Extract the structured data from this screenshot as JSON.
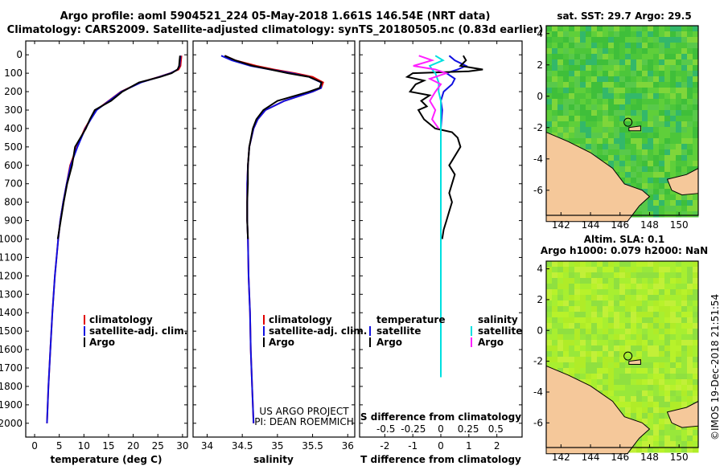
{
  "header": {
    "title1": "Argo profile: aoml 5904521_224 05-May-2018 1.661S 146.54E (NRT data)",
    "title2": "Climatology: CARS2009. Satellite-adjusted climatology: synTS_20180505.nc (0.83d earlier)"
  },
  "map_top": {
    "title": "sat. SST: 29.7 Argo: 29.5",
    "x_ticks": [
      "142",
      "144",
      "146",
      "148",
      "150"
    ],
    "y_ticks": [
      "4",
      "2",
      "0",
      "-2",
      "-4",
      "-6"
    ]
  },
  "map_bottom": {
    "title1": "Altim. SLA: 0.1",
    "title2": "Argo h1000: 0.079 h2000: NaN",
    "x_ticks": [
      "142",
      "144",
      "146",
      "148",
      "150"
    ],
    "y_ticks": [
      "4",
      "2",
      "0",
      "-2",
      "-4",
      "-6"
    ]
  },
  "credit": {
    "line1": "US ARGO PROJECT",
    "line2": "PI: DEAN ROEMMICH"
  },
  "watermark": "©IMOS 19-Dec-2018 21:51:54",
  "colors": {
    "climatology": "#e00000",
    "satellite": "#1010e0",
    "argo": "#000000",
    "sat_salinity": "#00e0e0",
    "argo_salinity": "#ff20ff",
    "land": "#f5c89a",
    "ocean_a": "#5fcf3a",
    "ocean_b": "#a8ef30"
  },
  "chart_data": [
    {
      "type": "line",
      "title": "",
      "xlabel": "temperature (deg C)",
      "ylabel": "",
      "xlim": [
        -1,
        31
      ],
      "ylim": [
        2050,
        0
      ],
      "x_ticks": [
        "0",
        "5",
        "10",
        "15",
        "20",
        "25",
        "30"
      ],
      "y_ticks": [
        "0",
        "100",
        "200",
        "300",
        "400",
        "500",
        "600",
        "700",
        "800",
        "900",
        "1000",
        "1100",
        "1200",
        "1300",
        "1400",
        "1500",
        "1600",
        "1700",
        "1800",
        "1900",
        "2000"
      ],
      "legend": [
        "climatology",
        "satellite-adj. clim.",
        "Argo"
      ],
      "legend_position": "lower-middle",
      "series": [
        {
          "name": "climatology",
          "depth": [
            5,
            30,
            60,
            80,
            100,
            120,
            150,
            200,
            250,
            300,
            350,
            400,
            500,
            600,
            700,
            800,
            900,
            1000,
            1200,
            1400,
            1600,
            1800,
            2000
          ],
          "values": [
            29.8,
            29.7,
            29.6,
            29.2,
            27.5,
            25.2,
            21.5,
            17.5,
            15,
            12.5,
            11.3,
            10.2,
            8.6,
            7.2,
            6.5,
            5.8,
            5.2,
            4.8,
            4.1,
            3.6,
            3.2,
            2.8,
            2.5
          ]
        },
        {
          "name": "satellite-adj. clim.",
          "depth": [
            5,
            30,
            60,
            80,
            100,
            120,
            150,
            200,
            250,
            300,
            350,
            400,
            500,
            600,
            700,
            800,
            900,
            1000,
            1200,
            1400,
            1600,
            1800,
            2000
          ],
          "values": [
            29.6,
            29.5,
            29.4,
            29.0,
            27.6,
            25.3,
            21.6,
            17.6,
            15.1,
            12.6,
            11.4,
            10.3,
            8.7,
            7.3,
            6.5,
            5.8,
            5.2,
            4.8,
            4.1,
            3.6,
            3.2,
            2.8,
            2.5
          ]
        },
        {
          "name": "Argo",
          "depth": [
            5,
            30,
            60,
            80,
            100,
            120,
            150,
            200,
            250,
            300,
            350,
            400,
            500,
            600,
            700,
            800,
            900,
            1000
          ],
          "values": [
            29.5,
            29.4,
            29.3,
            29.0,
            27.8,
            25.5,
            21.2,
            17.8,
            15.5,
            12.2,
            11.2,
            10.4,
            8.2,
            7.6,
            6.6,
            5.9,
            5.3,
            4.7
          ]
        }
      ]
    },
    {
      "type": "line",
      "title": "",
      "xlabel": "salinity",
      "ylabel": "",
      "xlim": [
        33.8,
        36.1
      ],
      "ylim": [
        2050,
        0
      ],
      "x_ticks": [
        "34",
        "34.5",
        "35",
        "35.5",
        "36"
      ],
      "y_ticks": [],
      "legend": [
        "climatology",
        "satellite-adj. clim.",
        "Argo"
      ],
      "legend_position": "lower-middle",
      "series": [
        {
          "name": "climatology",
          "depth": [
            5,
            30,
            60,
            80,
            100,
            120,
            150,
            180,
            200,
            250,
            300,
            350,
            400,
            500,
            600,
            700,
            800,
            900,
            1000,
            1200,
            1400,
            1600,
            1800,
            2000
          ],
          "values": [
            34.25,
            34.4,
            34.7,
            34.95,
            35.25,
            35.5,
            35.65,
            35.62,
            35.5,
            35.1,
            34.83,
            34.72,
            34.66,
            34.6,
            34.58,
            34.57,
            34.57,
            34.57,
            34.58,
            34.59,
            34.61,
            34.62,
            34.64,
            34.66
          ]
        },
        {
          "name": "satellite-adj. clim.",
          "depth": [
            5,
            30,
            60,
            80,
            100,
            120,
            150,
            180,
            200,
            250,
            300,
            350,
            400,
            500,
            600,
            700,
            800,
            900,
            1000,
            1200,
            1400,
            1600,
            1800,
            2000
          ],
          "values": [
            34.2,
            34.35,
            34.62,
            34.9,
            35.2,
            35.45,
            35.62,
            35.62,
            35.5,
            35.1,
            34.83,
            34.72,
            34.66,
            34.6,
            34.58,
            34.57,
            34.57,
            34.57,
            34.58,
            34.59,
            34.61,
            34.62,
            34.64,
            34.66
          ]
        },
        {
          "name": "Argo",
          "depth": [
            5,
            30,
            60,
            80,
            100,
            120,
            150,
            180,
            200,
            250,
            300,
            350,
            400,
            500,
            600,
            700,
            800,
            900,
            1000
          ],
          "values": [
            34.25,
            34.4,
            34.65,
            34.9,
            35.15,
            35.45,
            35.63,
            35.6,
            35.45,
            35.0,
            34.8,
            34.7,
            34.65,
            34.6,
            34.58,
            34.58,
            34.57,
            34.57,
            34.58
          ]
        }
      ]
    },
    {
      "type": "line",
      "title": "",
      "xlabel": "T difference from climatology",
      "ylabel": "",
      "xlim": [
        -2.9,
        2.9
      ],
      "ylim": [
        2050,
        0
      ],
      "x_ticks": [
        "-2",
        "-1",
        "0",
        "1",
        "2"
      ],
      "s_axis_label": "S difference from climatology",
      "s_ticks": [
        "-0.5",
        "-0.25",
        "0",
        "0.25",
        "0.5"
      ],
      "legend": [
        "temperature",
        "satellite",
        "Argo",
        "salinity",
        "satellite",
        "Argo"
      ],
      "legend_position": "lower",
      "series": [
        {
          "name": "T satellite",
          "depth": [
            5,
            30,
            60,
            80,
            100,
            130,
            160,
            200,
            250,
            300,
            400,
            500,
            600,
            800,
            1000,
            1200,
            1400,
            1600,
            1750
          ],
          "values": [
            0.3,
            0.5,
            0.9,
            0.6,
            0.2,
            0.5,
            0.4,
            0.1,
            0,
            0.05,
            0,
            0,
            0,
            0,
            0,
            0,
            0,
            0,
            0
          ]
        },
        {
          "name": "T Argo",
          "depth": [
            5,
            30,
            60,
            80,
            90,
            100,
            120,
            140,
            160,
            200,
            220,
            250,
            280,
            300,
            350,
            400,
            420,
            450,
            500,
            550,
            600,
            650,
            700,
            750,
            800,
            850,
            900,
            950,
            1000
          ],
          "values": [
            0.8,
            0.9,
            0.7,
            1.5,
            1.0,
            -1.0,
            -1.2,
            -0.6,
            -0.9,
            -1.1,
            -0.4,
            -0.7,
            -0.5,
            -0.8,
            -0.6,
            -0.2,
            0.4,
            0.6,
            0.7,
            0.5,
            0.3,
            0.5,
            0.4,
            0.3,
            0.4,
            0.3,
            0.2,
            0.1,
            0.05
          ]
        },
        {
          "name": "S satellite",
          "depth": [
            5,
            30,
            60,
            80,
            100,
            150,
            200,
            250,
            300,
            400,
            500,
            600,
            800,
            1000,
            1200,
            1400,
            1600,
            1750
          ],
          "values": [
            -0.05,
            0.02,
            -0.1,
            -0.08,
            -0.05,
            -0.02,
            -0.02,
            0.0,
            0.0,
            0.0,
            0.0,
            0.0,
            0.0,
            0.0,
            0.0,
            0.0,
            0.0,
            0.0
          ]
        },
        {
          "name": "S Argo",
          "depth": [
            5,
            30,
            60,
            80,
            100,
            130,
            160,
            200,
            250,
            300,
            350,
            400
          ],
          "values": [
            -0.2,
            -0.08,
            -0.25,
            -0.05,
            0.05,
            -0.1,
            0.0,
            -0.05,
            -0.1,
            -0.05,
            -0.08,
            -0.02
          ]
        }
      ]
    }
  ]
}
